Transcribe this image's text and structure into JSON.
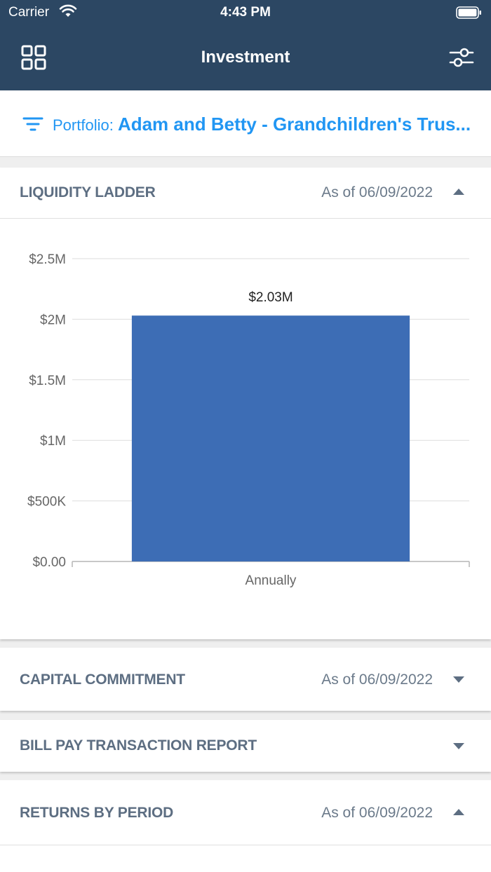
{
  "status_bar": {
    "carrier": "Carrier",
    "time": "4:43 PM"
  },
  "header": {
    "title": "Investment"
  },
  "portfolio": {
    "label": "Portfolio: ",
    "name": "Adam and Betty - Grandchildren's Trus..."
  },
  "cards": [
    {
      "title": "LIQUIDITY LADDER",
      "date": "As of 06/09/2022",
      "expanded": true
    },
    {
      "title": "CAPITAL COMMITMENT",
      "date": "As of 06/09/2022",
      "expanded": false
    },
    {
      "title": "BILL PAY TRANSACTION REPORT",
      "date": "",
      "expanded": false
    },
    {
      "title": "RETURNS BY PERIOD",
      "date": "As of 06/09/2022",
      "expanded": true
    }
  ],
  "colors": {
    "nav": "#2c4763",
    "accent": "#2196f3",
    "bar": "#3d6db5"
  },
  "chart_data": {
    "type": "bar",
    "categories": [
      "Annually"
    ],
    "values": [
      2030000
    ],
    "data_labels": [
      "$2.03M"
    ],
    "ylim": [
      0,
      2500000
    ],
    "yticks": [
      0,
      500000,
      1000000,
      1500000,
      2000000,
      2500000
    ],
    "ytick_labels": [
      "$0.00",
      "$500K",
      "$1M",
      "$1.5M",
      "$2M",
      "$2.5M"
    ],
    "grid": true
  }
}
